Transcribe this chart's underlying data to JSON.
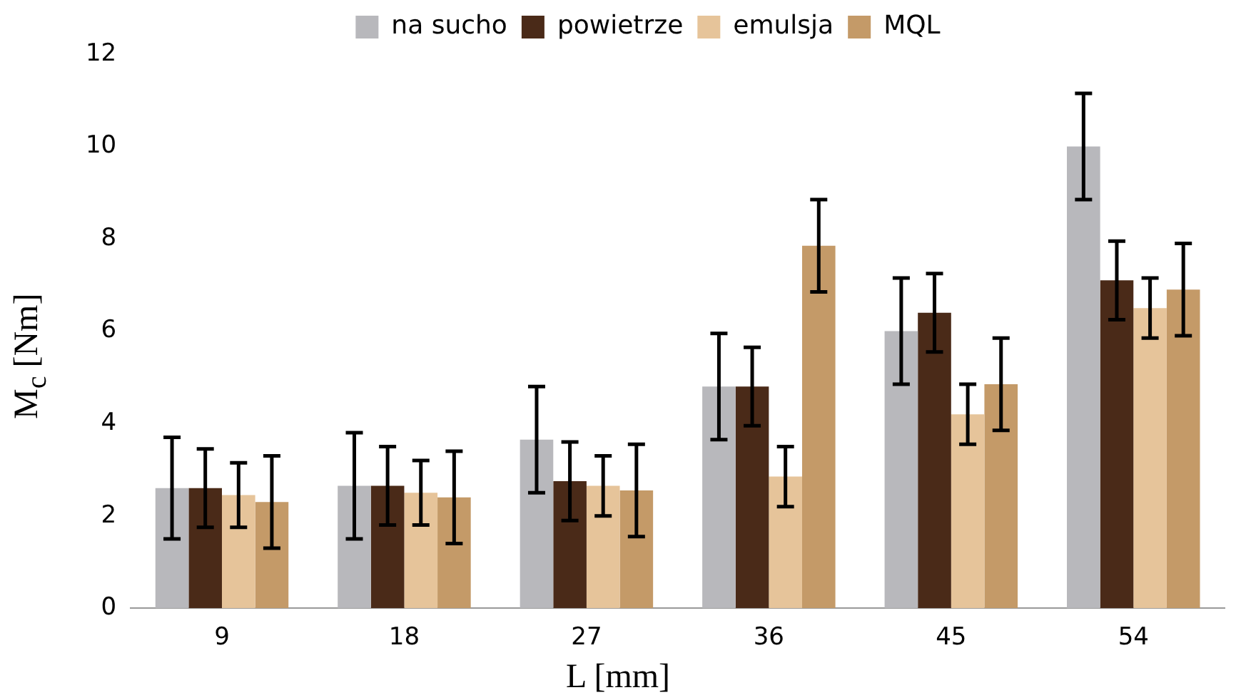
{
  "chart_data": {
    "type": "bar",
    "xlabel": "L [mm]",
    "ylabel": "M$_{c}$ [Nm]",
    "categories": [
      "9",
      "18",
      "27",
      "36",
      "45",
      "54"
    ],
    "series": [
      {
        "name": "na sucho",
        "color": "#b8b8bc",
        "values": [
          2.6,
          2.65,
          3.65,
          4.8,
          6.0,
          10.0
        ],
        "errors": [
          1.1,
          1.15,
          1.15,
          1.15,
          1.15,
          1.15
        ]
      },
      {
        "name": "powietrze",
        "color": "#4a2a18",
        "values": [
          2.6,
          2.65,
          2.75,
          4.8,
          6.4,
          7.1
        ],
        "errors": [
          0.85,
          0.85,
          0.85,
          0.85,
          0.85,
          0.85
        ]
      },
      {
        "name": "emulsja",
        "color": "#e6c49a",
        "values": [
          2.45,
          2.5,
          2.65,
          2.85,
          4.2,
          6.5
        ],
        "errors": [
          0.7,
          0.7,
          0.65,
          0.65,
          0.65,
          0.65
        ]
      },
      {
        "name": "MQL",
        "color": "#c49a68",
        "values": [
          2.3,
          2.4,
          2.55,
          7.85,
          4.85,
          6.9
        ],
        "errors": [
          1.0,
          1.0,
          1.0,
          1.0,
          1.0,
          1.0
        ]
      }
    ],
    "ylim": [
      0,
      12
    ],
    "yticks": [
      0,
      2,
      4,
      6,
      8,
      10,
      12
    ],
    "grid": false,
    "legend": "top"
  }
}
